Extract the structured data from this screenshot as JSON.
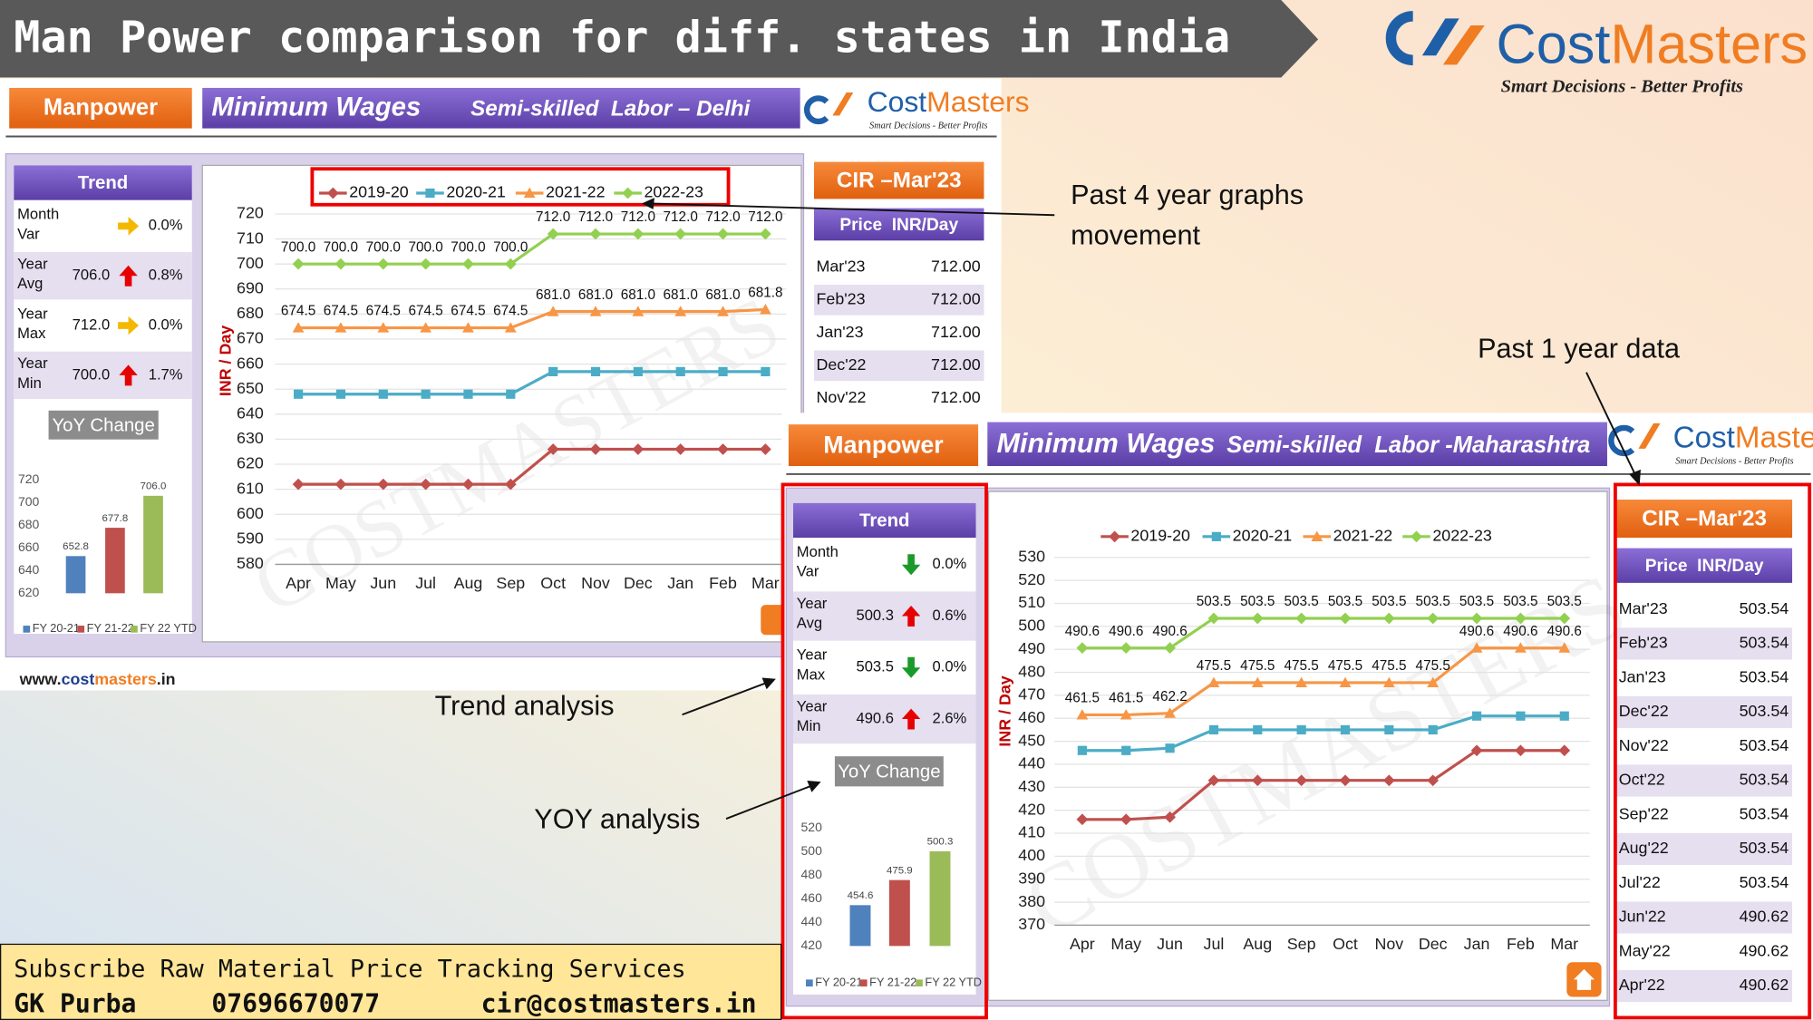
{
  "header": {
    "title": "Man Power comparison for diff. states in India",
    "logo": {
      "cost": "Cost",
      "masters": "Masters",
      "tagline": "Smart Decisions - Better Profits"
    }
  },
  "watermark": "COSTMASTERS",
  "delhi": {
    "tab": "Manpower",
    "heading": "Minimum Wages",
    "subheading": "Semi-skilled  Labor – Delhi",
    "logo": {
      "cost": "Cost",
      "masters": "Masters",
      "tagline": "Smart Decisions - Better Profits"
    },
    "trend": {
      "title": "Trend",
      "rows": [
        {
          "label": [
            "Month",
            "Var"
          ],
          "arrow": "right",
          "change": "0.0%"
        },
        {
          "label": [
            "Year",
            "Avg"
          ],
          "value": "706.0",
          "arrow": "up",
          "change": "0.8%"
        },
        {
          "label": [
            "Year",
            "Max"
          ],
          "value": "712.0",
          "arrow": "right",
          "change": "0.0%"
        },
        {
          "label": [
            "Year",
            "Min"
          ],
          "value": "700.0",
          "arrow": "up",
          "change": "1.7%"
        }
      ]
    },
    "price": {
      "title": "CIR –Mar'23",
      "header": "Price  INR/Day",
      "rows": [
        [
          "Mar'23",
          "712.00"
        ],
        [
          "Feb'23",
          "712.00"
        ],
        [
          "Jan'23",
          "712.00"
        ],
        [
          "Dec'22",
          "712.00"
        ],
        [
          "Nov'22",
          "712.00"
        ]
      ]
    },
    "website": [
      "www.",
      "cost",
      "masters",
      ".in"
    ]
  },
  "maharashtra": {
    "tab": "Manpower",
    "heading": "Minimum Wages",
    "subheading": "Semi-skilled  Labor -Maharashtra",
    "logo": {
      "cost": "Cost",
      "masters": "Masters",
      "tagline": "Smart Decisions - Better Profits"
    },
    "trend": {
      "title": "Trend",
      "rows": [
        {
          "label": [
            "Month",
            "Var"
          ],
          "arrow": "down",
          "change": "0.0%"
        },
        {
          "label": [
            "Year",
            "Avg"
          ],
          "value": "500.3",
          "arrow": "up",
          "change": "0.6%"
        },
        {
          "label": [
            "Year",
            "Max"
          ],
          "value": "503.5",
          "arrow": "down",
          "change": "0.0%"
        },
        {
          "label": [
            "Year",
            "Min"
          ],
          "value": "490.6",
          "arrow": "up",
          "change": "2.6%"
        }
      ]
    },
    "price": {
      "title": "CIR –Mar'23",
      "header": "Price  INR/Day",
      "rows": [
        [
          "Mar'23",
          "503.54"
        ],
        [
          "Feb'23",
          "503.54"
        ],
        [
          "Jan'23",
          "503.54"
        ],
        [
          "Dec'22",
          "503.54"
        ],
        [
          "Nov'22",
          "503.54"
        ],
        [
          "Oct'22",
          "503.54"
        ],
        [
          "Sep'22",
          "503.54"
        ],
        [
          "Aug'22",
          "503.54"
        ],
        [
          "Jul'22",
          "503.54"
        ],
        [
          "Jun'22",
          "490.62"
        ],
        [
          "May'22",
          "490.62"
        ],
        [
          "Apr'22",
          "490.62"
        ]
      ]
    }
  },
  "annotations": {
    "past_four_years": [
      "Past 4 year graphs",
      "movement"
    ],
    "past_one_year": "Past 1 year data",
    "trend_analysis": "Trend analysis",
    "yoy_analysis": "YOY analysis"
  },
  "footer": {
    "subscribe": "Subscribe Raw Material Price Tracking Services",
    "name": "GK Purba",
    "phone": "07696670077",
    "email": "cir@costmasters.in"
  },
  "chart_data": [
    {
      "type": "line",
      "y_label": "INR / Day",
      "categories": [
        "Apr",
        "May",
        "Jun",
        "Jul",
        "Aug",
        "Sep",
        "Oct",
        "Nov",
        "Dec",
        "Jan",
        "Feb",
        "Mar"
      ],
      "ylim": [
        580,
        720
      ],
      "yticks": [
        580,
        590,
        600,
        610,
        620,
        630,
        640,
        650,
        660,
        670,
        680,
        690,
        700,
        710,
        720
      ],
      "grid": true,
      "series": [
        {
          "name": "2019-20",
          "color": "#c0504d",
          "values": [
            612,
            612,
            612,
            612,
            612,
            612,
            626,
            626,
            626,
            626,
            626,
            626
          ]
        },
        {
          "name": "2020-21",
          "color": "#4bacc6",
          "values": [
            648,
            648,
            648,
            648,
            648,
            648,
            657,
            657,
            657,
            657,
            657,
            657
          ]
        },
        {
          "name": "2021-22",
          "color": "#f79646",
          "values": [
            674.5,
            674.5,
            674.5,
            674.5,
            674.5,
            674.5,
            681,
            681,
            681,
            681,
            681,
            681.8
          ],
          "value_labels": [
            "674.5",
            "674.5",
            "674.5",
            "674.5",
            "674.5",
            "674.5",
            "681.0",
            "681.0",
            "681.0",
            "681.0",
            "681.0",
            "681.8"
          ]
        },
        {
          "name": "2022-23",
          "color": "#92d050",
          "values": [
            700,
            700,
            700,
            700,
            700,
            700,
            712,
            712,
            712,
            712,
            712,
            712
          ],
          "value_labels": [
            "700.0",
            "700.0",
            "700.0",
            "700.0",
            "700.0",
            "700.0",
            "712.0",
            "712.0",
            "712.0",
            "712.0",
            "712.0",
            "712.0"
          ]
        }
      ]
    },
    {
      "type": "bar",
      "title": "YoY Change",
      "categories": [
        null
      ],
      "ylim": [
        620,
        720
      ],
      "yticks": [
        620,
        640,
        660,
        680,
        700,
        720
      ],
      "series": [
        {
          "name": "FY 20-21",
          "color": "#4f81bd",
          "values": [
            652.8
          ]
        },
        {
          "name": "FY 21-22",
          "color": "#c0504d",
          "values": [
            677.8
          ]
        },
        {
          "name": "FY 22 YTD",
          "color": "#9bbb59",
          "values": [
            706
          ],
          "value_labels": [
            "706.0"
          ]
        }
      ]
    },
    {
      "type": "line",
      "y_label": "INR / Day",
      "categories": [
        "Apr",
        "May",
        "Jun",
        "Jul",
        "Aug",
        "Sep",
        "Oct",
        "Nov",
        "Dec",
        "Jan",
        "Feb",
        "Mar"
      ],
      "ylim": [
        370,
        530
      ],
      "yticks": [
        370,
        380,
        390,
        400,
        410,
        420,
        430,
        440,
        450,
        460,
        470,
        480,
        490,
        500,
        510,
        520,
        530
      ],
      "grid": true,
      "series": [
        {
          "name": "2019-20",
          "color": "#c0504d",
          "values": [
            416,
            416,
            417,
            433,
            433,
            433,
            433,
            433,
            433,
            446,
            446,
            446
          ]
        },
        {
          "name": "2020-21",
          "color": "#4bacc6",
          "values": [
            446,
            446,
            447,
            455,
            455,
            455,
            455,
            455,
            455,
            461,
            461,
            461
          ]
        },
        {
          "name": "2021-22",
          "color": "#f79646",
          "data_labels": true,
          "values": [
            461.5,
            461.5,
            462.2,
            475.5,
            475.5,
            475.5,
            475.5,
            475.5,
            475.5,
            490.6,
            490.6,
            490.6
          ]
        },
        {
          "name": "2022-23",
          "color": "#92d050",
          "data_labels": true,
          "values": [
            490.6,
            490.6,
            490.6,
            503.5,
            503.5,
            503.5,
            503.5,
            503.5,
            503.5,
            503.5,
            503.5,
            503.5
          ]
        }
      ]
    },
    {
      "type": "bar",
      "title": "YoY Change",
      "categories": [
        null
      ],
      "ylim": [
        420,
        520
      ],
      "yticks": [
        420,
        440,
        460,
        480,
        500,
        520
      ],
      "series": [
        {
          "name": "FY 20-21",
          "color": "#4f81bd",
          "values": [
            454.6
          ]
        },
        {
          "name": "FY 21-22",
          "color": "#c0504d",
          "values": [
            475.9
          ]
        },
        {
          "name": "FY 22 YTD",
          "color": "#9bbb59",
          "values": [
            500.3
          ]
        }
      ]
    }
  ]
}
